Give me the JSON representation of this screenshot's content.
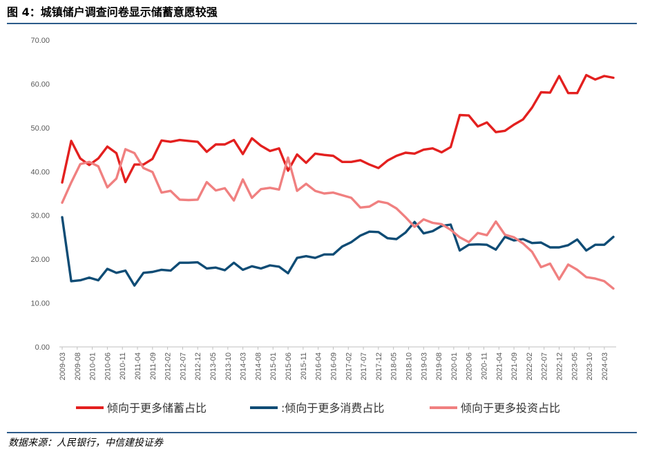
{
  "title": "图 4：城镇储户调查问卷显示储蓄意愿较强",
  "source": "数据来源：人民银行，中信建投证券",
  "chart_data": {
    "type": "line",
    "title": "",
    "xlabel": "",
    "ylabel": "",
    "ylim": [
      0,
      70
    ],
    "yticks": [
      "0.00",
      "10.00",
      "20.00",
      "30.00",
      "40.00",
      "50.00",
      "60.00",
      "70.00"
    ],
    "grid": false,
    "legend_position": "bottom",
    "x": [
      "2009-03",
      "2009-06",
      "2009-09",
      "2009-12",
      "2010-03",
      "2010-06",
      "2010-09",
      "2010-12",
      "2011-03",
      "2011-06",
      "2011-09",
      "2011-12",
      "2012-03",
      "2012-06",
      "2012-09",
      "2012-12",
      "2013-03",
      "2013-06",
      "2013-09",
      "2013-12",
      "2014-03",
      "2014-06",
      "2014-09",
      "2014-12",
      "2015-03",
      "2015-06",
      "2015-09",
      "2015-12",
      "2016-03",
      "2016-06",
      "2016-09",
      "2016-12",
      "2017-03",
      "2017-06",
      "2017-09",
      "2017-12",
      "2018-03",
      "2018-06",
      "2018-09",
      "2018-12",
      "2019-03",
      "2019-06",
      "2019-09",
      "2019-12",
      "2020-03",
      "2020-06",
      "2020-09",
      "2020-12",
      "2021-03",
      "2021-06",
      "2021-09",
      "2021-12",
      "2022-03",
      "2022-06",
      "2022-09",
      "2022-12",
      "2023-03",
      "2023-06",
      "2023-09",
      "2023-12",
      "2024-03",
      "2024-06"
    ],
    "xtick_labels": [
      "2009-03",
      "2009-08",
      "2010-01",
      "2010-06",
      "2010-11",
      "2011-04",
      "2011-09",
      "2012-02",
      "2012-07",
      "2012-12",
      "2013-05",
      "2013-10",
      "2014-03",
      "2014-08",
      "2015-01",
      "2015-06",
      "2015-11",
      "2016-04",
      "2016-09",
      "2017-02",
      "2017-07",
      "2017-12",
      "2018-05",
      "2018-10",
      "2019-03",
      "2019-08",
      "2020-01",
      "2020-06",
      "2020-11",
      "2021-04",
      "2021-09",
      "2022-02",
      "2022-07",
      "2022-12",
      "2023-05",
      "2023-10",
      "2024-03"
    ],
    "series": [
      {
        "name": "倾向于更多储蓄占比",
        "color": "#e3201f",
        "values": [
          37.5,
          47.0,
          43.0,
          41.5,
          43.0,
          45.7,
          44.2,
          37.6,
          41.6,
          41.6,
          42.9,
          47.1,
          46.8,
          47.2,
          47.0,
          46.8,
          44.5,
          46.2,
          46.2,
          47.2,
          44.0,
          47.6,
          45.9,
          44.7,
          45.3,
          40.2,
          43.9,
          42.0,
          44.1,
          43.8,
          43.6,
          42.2,
          42.2,
          42.6,
          41.6,
          40.8,
          42.5,
          43.6,
          44.3,
          44.1,
          45.0,
          45.3,
          44.4,
          45.6,
          52.9,
          52.8,
          50.3,
          51.2,
          49.0,
          49.3,
          50.7,
          51.9,
          54.6,
          58.1,
          58.0,
          61.8,
          57.9,
          57.9,
          62.0,
          61.0,
          61.8,
          61.4
        ]
      },
      {
        "name": ":倾向于更多消费占比",
        "color": "#0f4c75",
        "values": [
          29.6,
          15.0,
          15.2,
          15.8,
          15.2,
          17.8,
          16.9,
          17.4,
          14.0,
          16.9,
          17.1,
          17.6,
          17.4,
          19.2,
          19.2,
          19.3,
          17.9,
          18.1,
          17.5,
          19.2,
          17.6,
          18.4,
          17.9,
          18.6,
          18.3,
          16.8,
          20.3,
          20.7,
          20.3,
          21.1,
          21.1,
          22.9,
          23.9,
          25.4,
          26.3,
          26.2,
          24.8,
          24.6,
          26.1,
          28.5,
          25.9,
          26.4,
          27.6,
          27.9,
          22.0,
          23.3,
          23.4,
          23.3,
          22.2,
          25.1,
          24.3,
          24.6,
          23.7,
          23.8,
          22.7,
          22.7,
          23.2,
          24.5,
          22.0,
          23.3,
          23.3,
          25.1
        ]
      },
      {
        "name": "倾向于更多投资占比",
        "color": "#f08080",
        "values": [
          32.9,
          37.5,
          41.7,
          42.2,
          41.2,
          36.4,
          38.4,
          45.1,
          44.2,
          40.8,
          39.9,
          35.2,
          35.6,
          33.6,
          33.5,
          33.6,
          37.6,
          35.7,
          36.2,
          33.4,
          38.2,
          34.0,
          36.0,
          36.3,
          35.9,
          43.2,
          35.6,
          37.2,
          35.6,
          35.0,
          35.2,
          34.6,
          34.0,
          31.8,
          32.0,
          33.2,
          32.8,
          31.6,
          29.6,
          27.4,
          29.1,
          28.3,
          28.0,
          26.7,
          25.0,
          23.9,
          26.0,
          25.5,
          28.6,
          25.6,
          25.0,
          23.6,
          21.7,
          18.2,
          19.0,
          15.4,
          18.8,
          17.6,
          15.9,
          15.6,
          15.0,
          13.3
        ]
      }
    ]
  }
}
